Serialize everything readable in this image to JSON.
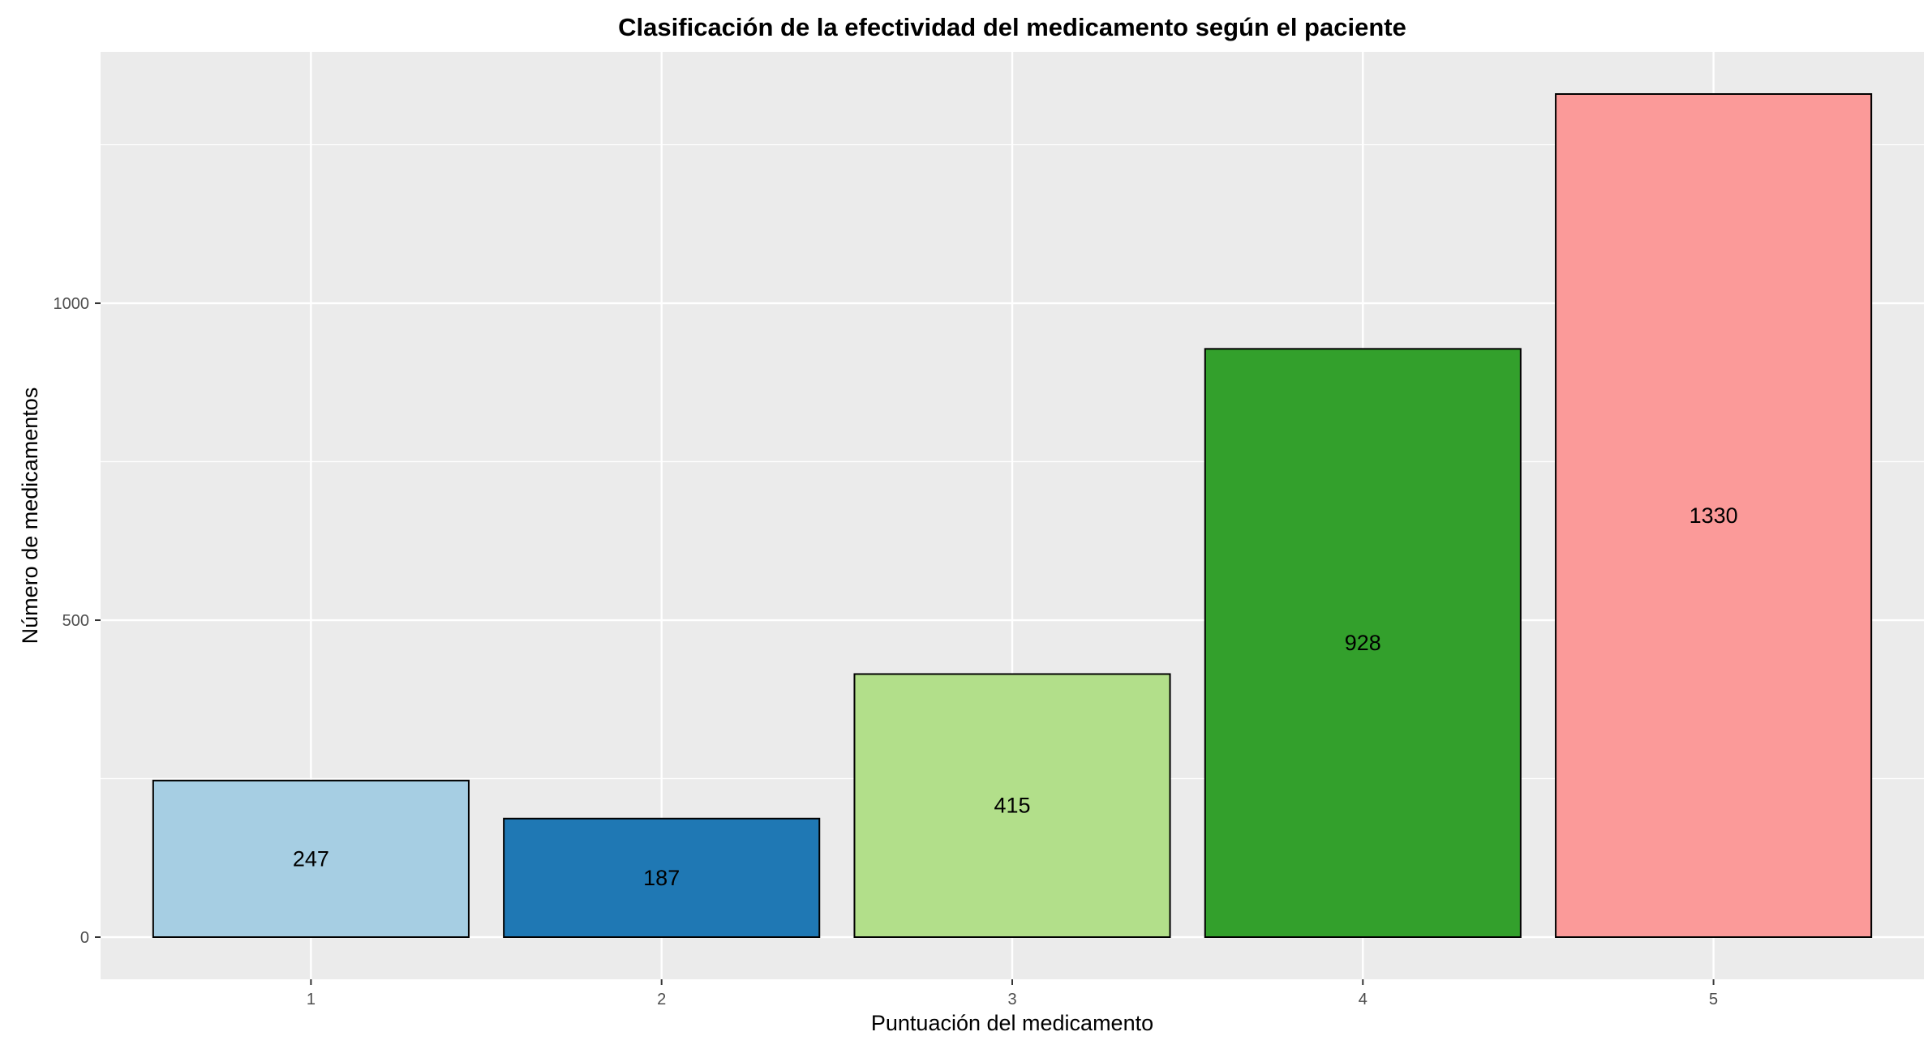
{
  "chart_data": {
    "type": "bar",
    "title": "Clasificación de la efectividad del medicamento según el paciente",
    "xlabel": "Puntuación del medicamento",
    "ylabel": "Número de medicamentos",
    "categories": [
      "1",
      "2",
      "3",
      "4",
      "5"
    ],
    "values": [
      247,
      187,
      415,
      928,
      1330
    ],
    "data_labels": [
      "247",
      "187",
      "415",
      "928",
      "1330"
    ],
    "colors": [
      "#A6CEE3",
      "#1F78B4",
      "#B2DF8A",
      "#33A02C",
      "#FB9A99"
    ],
    "y_ticks": [
      0,
      500,
      1000
    ],
    "y_tick_labels": [
      "0",
      "500",
      "1000"
    ],
    "ylim": [
      -66.5,
      1396.5
    ],
    "grid": true,
    "panel_background": "#EBEBEB",
    "grid_color": "#FFFFFF",
    "bar_outline": "#000000"
  }
}
